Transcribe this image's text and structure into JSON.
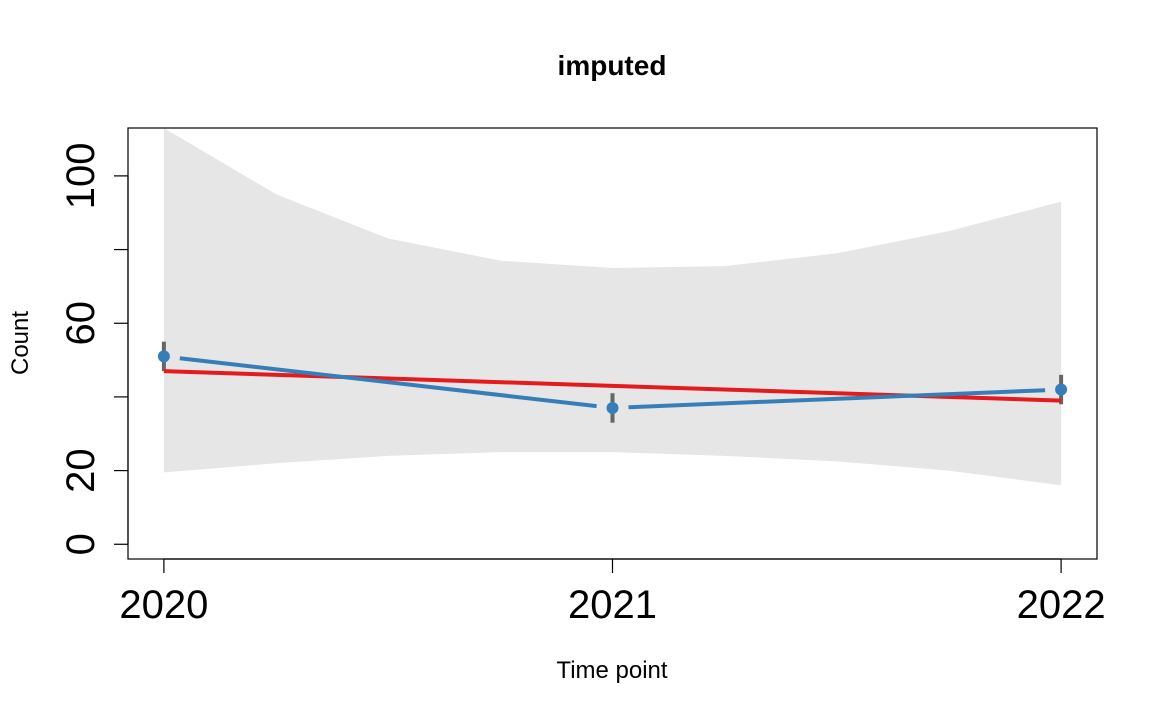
{
  "chart_data": {
    "type": "line",
    "title": "imputed",
    "xlabel": "Time point",
    "ylabel": "Count",
    "x_categories": [
      "2020",
      "2021",
      "2022"
    ],
    "x_values": [
      2020,
      2021,
      2022
    ],
    "xlim": [
      2019.92,
      2022.08
    ],
    "ylim": [
      -4,
      113
    ],
    "y_ticks": [
      0,
      20,
      40,
      60,
      80,
      100
    ],
    "y_tick_labels": [
      "0",
      "20",
      "",
      "60",
      "",
      "100"
    ],
    "ribbon": {
      "x": [
        2020,
        2020.25,
        2020.5,
        2020.75,
        2021,
        2021.25,
        2021.5,
        2021.75,
        2022
      ],
      "upper": [
        113,
        95,
        83,
        77,
        75,
        75.5,
        79,
        85,
        93
      ],
      "lower": [
        19.5,
        22,
        24,
        25,
        25,
        24,
        22.5,
        20,
        16
      ]
    },
    "series": [
      {
        "values": [
          47,
          43,
          39
        ],
        "color": "#e41a1c",
        "style": "line"
      },
      {
        "values": [
          51,
          37,
          42
        ],
        "color": "#377eb8",
        "style": "line-with-points",
        "error_low": [
          47,
          33,
          38
        ],
        "error_high": [
          55,
          41,
          46
        ],
        "error_color": "#666666"
      }
    ],
    "ribbon_color": "#e6e6e6",
    "grid": false,
    "legend": "none"
  }
}
